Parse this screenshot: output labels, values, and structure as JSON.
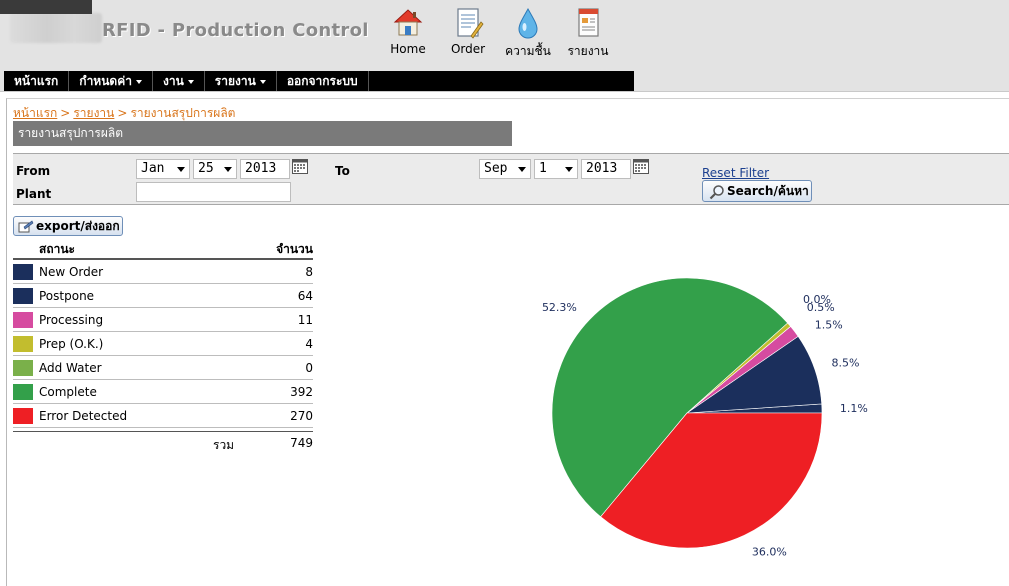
{
  "header": {
    "app_title": "RFID - Production Control",
    "tools": [
      {
        "label": "Home",
        "icon": "home-icon"
      },
      {
        "label": "Order",
        "icon": "order-icon"
      },
      {
        "label": "ความชื้น",
        "icon": "water-drop-icon"
      },
      {
        "label": "รายงาน",
        "icon": "report-icon"
      }
    ]
  },
  "menu": [
    {
      "label": "หน้าแรก",
      "dropdown": false
    },
    {
      "label": "กำหนดค่า",
      "dropdown": true
    },
    {
      "label": "งาน",
      "dropdown": true
    },
    {
      "label": "รายงาน",
      "dropdown": true
    },
    {
      "label": "ออกจากระบบ",
      "dropdown": false
    }
  ],
  "breadcrumb": {
    "items": [
      "หน้าแรก",
      "รายงาน"
    ],
    "separator": ">",
    "current": "รายงานสรุปการผลิต"
  },
  "page_title": "รายงานสรุปการผลิต",
  "filter": {
    "from_label": "From",
    "to_label": "To",
    "plant_label": "Plant",
    "from": {
      "month": "Jan",
      "day": "25",
      "year": "2013"
    },
    "to": {
      "month": "Sep",
      "day": "1",
      "year": "2013"
    },
    "plant_value": "",
    "reset_label": "Reset Filter",
    "search_label": "Search/ค้นหา"
  },
  "export_label": "export/ส่งออก",
  "summary": {
    "col_status": "สถานะ",
    "col_count": "จำนวน",
    "rows": [
      {
        "name": "New Order",
        "count": "8",
        "color": "#1b2f5c"
      },
      {
        "name": "Postpone",
        "count": "64",
        "color": "#1b2f5c"
      },
      {
        "name": "Processing",
        "count": "11",
        "color": "#d64ba0"
      },
      {
        "name": "Prep (O.K.)",
        "count": "4",
        "color": "#c2bd2e"
      },
      {
        "name": "Add Water",
        "count": "0",
        "color": "#7ab04a"
      },
      {
        "name": "Complete",
        "count": "392",
        "color": "#33a04a"
      },
      {
        "name": "Error Detected",
        "count": "270",
        "color": "#ee1f24"
      }
    ],
    "total_label": "รวม",
    "total_value": "749"
  },
  "chart_data": {
    "type": "pie",
    "categories": [
      "New Order",
      "Postpone",
      "Processing",
      "Prep (O.K.)",
      "Add Water",
      "Complete",
      "Error Detected"
    ],
    "values": [
      8,
      64,
      11,
      4,
      0,
      392,
      270
    ],
    "labels": [
      "1.1%",
      "8.5%",
      "1.5%",
      "0.5%",
      "0.0%",
      "52.3%",
      "36.0%"
    ],
    "colors": [
      "#1b2f5c",
      "#1b2f5c",
      "#d64ba0",
      "#c2bd2e",
      "#7ab04a",
      "#33a04a",
      "#ee1f24"
    ]
  }
}
